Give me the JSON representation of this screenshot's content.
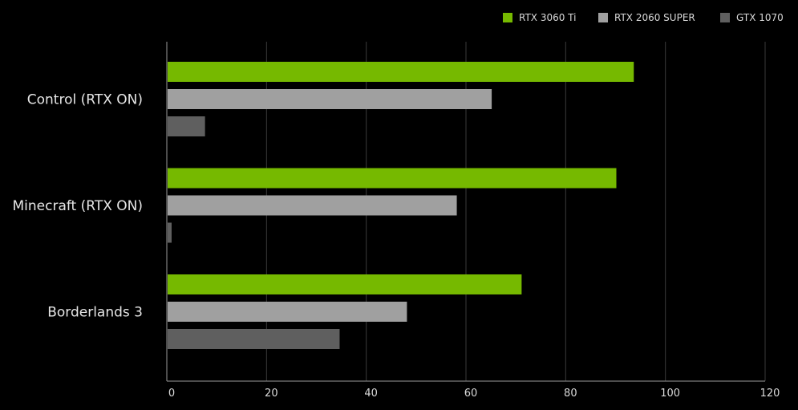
{
  "chart_data": {
    "type": "bar",
    "orientation": "horizontal",
    "title": "",
    "xlabel": "",
    "ylabel": "",
    "categories": [
      "Control (RTX ON)",
      "Minecraft (RTX ON)",
      "Borderlands 3"
    ],
    "series": [
      {
        "name": "RTX 3060 Ti",
        "color": "#76b900",
        "values": [
          93.5,
          90,
          71
        ]
      },
      {
        "name": "RTX 2060 SUPER",
        "color": "#a0a0a0",
        "values": [
          65,
          58,
          48
        ]
      },
      {
        "name": "GTX 1070",
        "color": "#5f5f5f",
        "values": [
          7.5,
          0.8,
          34.5
        ]
      }
    ],
    "xlim": [
      0,
      120
    ],
    "xticks": [
      0,
      20,
      40,
      60,
      80,
      100,
      120
    ],
    "grid": true,
    "legend_position": "top-right",
    "colors": {
      "background": "#000000",
      "grid": "#3a3a3a",
      "axis": "#9a9a9a"
    }
  }
}
